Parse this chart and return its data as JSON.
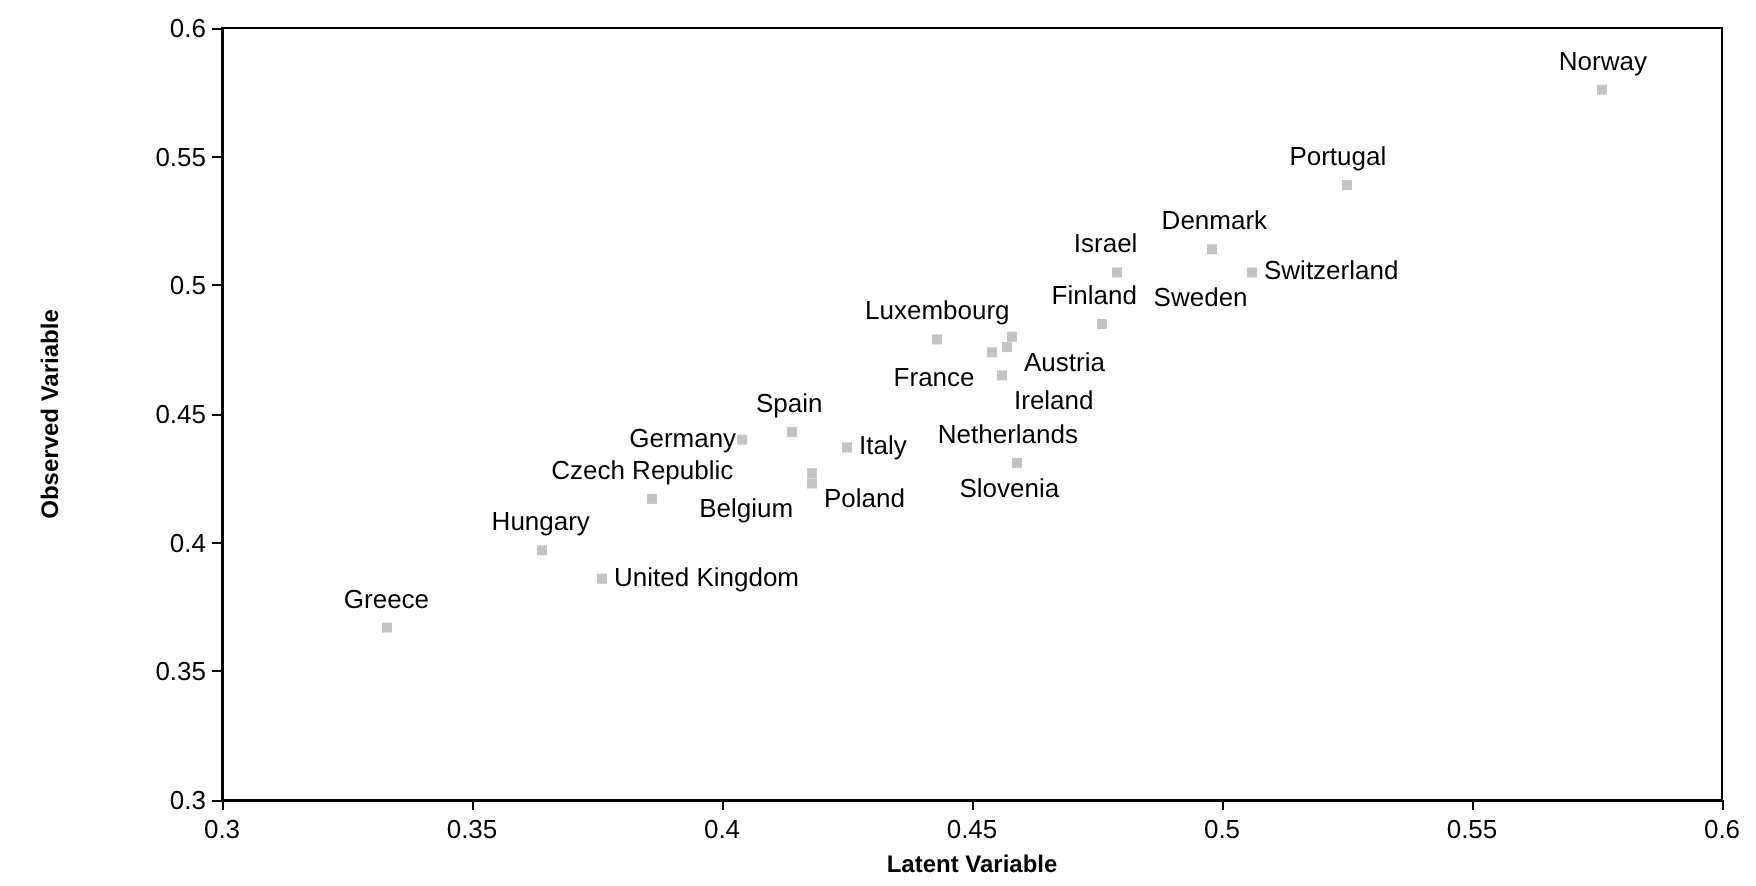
{
  "chart_data": {
    "type": "scatter",
    "xlabel": "Latent Variable",
    "ylabel": "Observed Variable",
    "xlim": [
      0.3,
      0.6
    ],
    "ylim": [
      0.3,
      0.6
    ],
    "xticks": [
      0.3,
      0.35,
      0.4,
      0.45,
      0.5,
      0.55,
      0.6
    ],
    "yticks": [
      0.3,
      0.35,
      0.4,
      0.45,
      0.5,
      0.55,
      0.6
    ],
    "grid": false,
    "marker": "square",
    "series": [
      {
        "color": "#b4b4b4",
        "x": [
          0.576,
          0.525,
          0.498,
          0.506,
          0.479,
          0.476,
          0.458,
          0.457,
          0.454,
          0.456,
          0.443,
          0.459,
          0.404,
          0.414,
          0.425,
          0.418,
          0.418,
          0.386,
          0.364,
          0.376,
          0.333
        ],
        "values": [
          0.576,
          0.539,
          0.514,
          0.505,
          0.505,
          0.485,
          0.48,
          0.476,
          0.474,
          0.465,
          0.479,
          0.431,
          0.44,
          0.443,
          0.437,
          0.427,
          0.423,
          0.417,
          0.397,
          0.386,
          0.367
        ]
      }
    ],
    "annotations": [
      {
        "text": "Norway",
        "x": 0.576,
        "y": 0.576
      },
      {
        "text": "Portugal",
        "x": 0.525,
        "y": 0.539
      },
      {
        "text": "Denmark",
        "x": 0.498,
        "y": 0.514
      },
      {
        "text": "Switzerland",
        "x": 0.506,
        "y": 0.505
      },
      {
        "text": "Israel",
        "x": 0.479,
        "y": 0.505
      },
      {
        "text": "Luxembourg",
        "x": 0.443,
        "y": 0.479
      },
      {
        "text": "Austria",
        "x": 0.458,
        "y": 0.48
      },
      {
        "text": "Sweden",
        "x": 0.506,
        "y": 0.505
      },
      {
        "text": "Finland",
        "x": 0.476,
        "y": 0.485
      },
      {
        "text": "France",
        "x": 0.454,
        "y": 0.474
      },
      {
        "text": "Ireland",
        "x": 0.456,
        "y": 0.465
      },
      {
        "text": "Spain",
        "x": 0.414,
        "y": 0.443
      },
      {
        "text": "Germany",
        "x": 0.404,
        "y": 0.44
      },
      {
        "text": "Italy",
        "x": 0.425,
        "y": 0.437
      },
      {
        "text": "Netherlands",
        "x": 0.459,
        "y": 0.431
      },
      {
        "text": "Czech Republic",
        "x": 0.386,
        "y": 0.417
      },
      {
        "text": "Poland",
        "x": 0.418,
        "y": 0.427
      },
      {
        "text": "Hungary",
        "x": 0.364,
        "y": 0.397
      },
      {
        "text": "Belgium",
        "x": 0.418,
        "y": 0.423
      },
      {
        "text": "Slovenia",
        "x": 0.459,
        "y": 0.431
      },
      {
        "text": "Greece",
        "x": 0.333,
        "y": 0.367
      },
      {
        "text": "United Kingdom",
        "x": 0.376,
        "y": 0.386
      }
    ]
  }
}
